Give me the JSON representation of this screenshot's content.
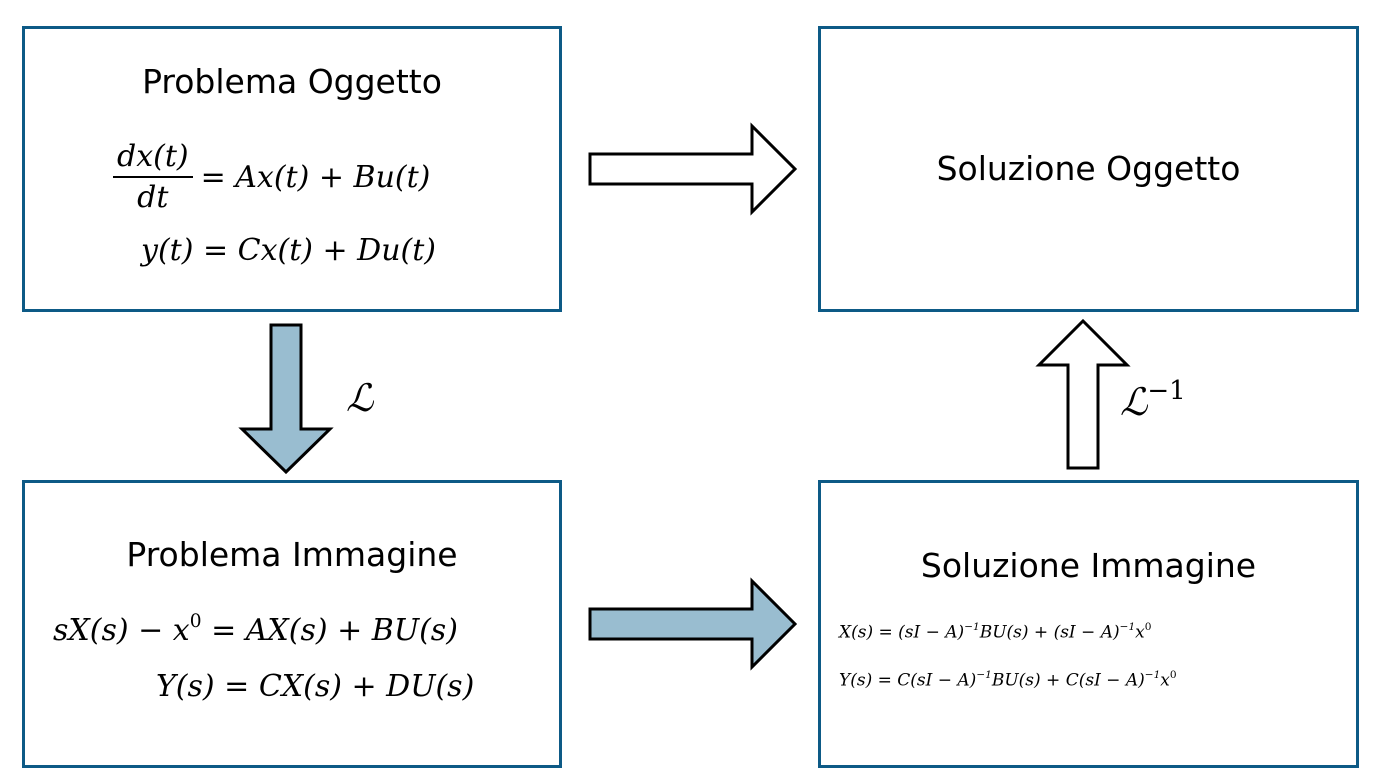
{
  "boxes": {
    "problem_object": {
      "title": "Problema Oggetto",
      "eq1_num": "dx(t)",
      "eq1_den": "dt",
      "eq1_rhs": "= Ax(t) + Bu(t)",
      "eq2": "y(t) = Cx(t) + Du(t)"
    },
    "solution_object": {
      "title": "Soluzione Oggetto"
    },
    "problem_image": {
      "title": "Problema Immagine",
      "eq1_a": "sX(s) − x",
      "eq1_sup": "0",
      "eq1_b": " = AX(s) + BU(s)",
      "eq2": "Y(s) = CX(s) + DU(s)"
    },
    "solution_image": {
      "title": "Soluzione Immagine",
      "eq1_p1": "X(s) = (sI − A)",
      "eq1_s1": "−1",
      "eq1_p2": "BU(s) + (sI − A)",
      "eq1_s2": "−1",
      "eq1_p3": "x",
      "eq1_s3": "0",
      "eq2_p1": "Y(s) = C(sI − A)",
      "eq2_s1": "−1",
      "eq2_p2": "BU(s) + C(sI − A)",
      "eq2_s2": "−1",
      "eq2_p3": "x",
      "eq2_s3": "0"
    }
  },
  "labels": {
    "laplace": "ℒ",
    "inverse_laplace": "ℒ",
    "inverse_exponent": "−1"
  },
  "colors": {
    "box_border": "#0d5a86",
    "arrow_fill_blue": "#99bdd0",
    "arrow_fill_white": "#ffffff",
    "arrow_stroke": "#000000"
  }
}
